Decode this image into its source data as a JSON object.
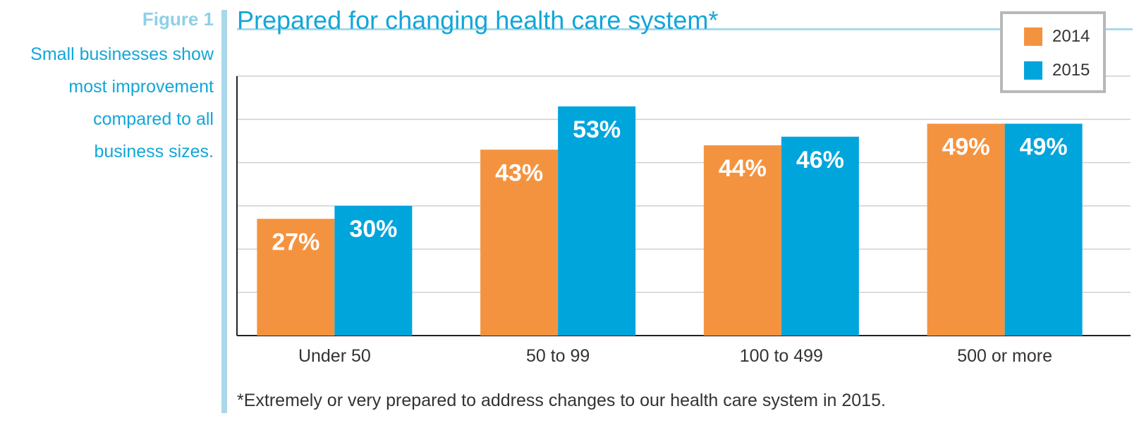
{
  "figure_label": "Figure 1",
  "figure_caption_lines": [
    "Small businesses show",
    "most improvement",
    "compared to all",
    "business sizes."
  ],
  "footnote": "*Extremely or very prepared to address changes to our health care system in 2015.",
  "colors": {
    "s2014": "#f4933f",
    "s2015": "#00a5dc",
    "accent": "#13a6d8",
    "divider": "#a9d8ea"
  },
  "chart_data": {
    "type": "bar",
    "title": "Prepared for changing health care system*",
    "categories": [
      "Under 50",
      "50 to 99",
      "100 to 499",
      "500 or more"
    ],
    "series": [
      {
        "name": "2014",
        "values": [
          27,
          43,
          44,
          49
        ],
        "labels": [
          "27%",
          "43%",
          "44%",
          "49%"
        ]
      },
      {
        "name": "2015",
        "values": [
          30,
          53,
          46,
          49
        ],
        "labels": [
          "30%",
          "53%",
          "46%",
          "49%"
        ]
      }
    ],
    "ylim": [
      0,
      60
    ],
    "grid": true,
    "legend_position": "top-right",
    "xlabel": "",
    "ylabel": ""
  }
}
